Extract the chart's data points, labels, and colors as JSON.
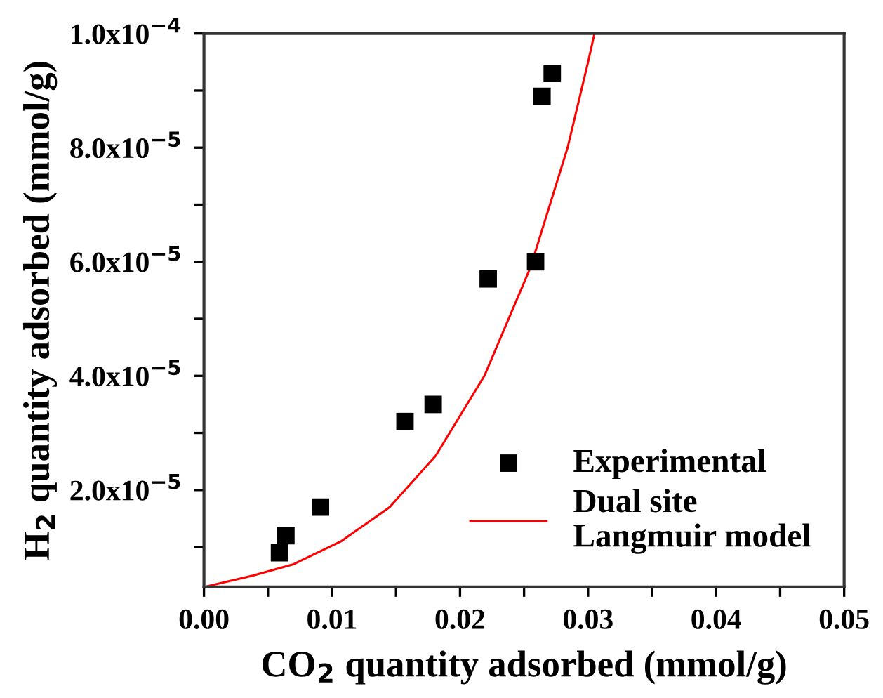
{
  "chart_data": {
    "type": "scatter",
    "xlabel": "CO$_{2}$ quantity adsorbed (mmol/g)",
    "ylabel": "H$_{2}$ quantity adsorbed (mmol/g)",
    "xlim": [
      0,
      0.05
    ],
    "ylim": [
      3e-06,
      0.0001
    ],
    "xticks": [
      {
        "value": 0,
        "label": "0.00"
      },
      {
        "value": 0.005,
        "label": null
      },
      {
        "value": 0.01,
        "label": "0.01"
      },
      {
        "value": 0.015,
        "label": null
      },
      {
        "value": 0.02,
        "label": "0.02"
      },
      {
        "value": 0.025,
        "label": null
      },
      {
        "value": 0.03,
        "label": "0.03"
      },
      {
        "value": 0.035,
        "label": null
      },
      {
        "value": 0.04,
        "label": "0.04"
      },
      {
        "value": 0.045,
        "label": null
      },
      {
        "value": 0.05,
        "label": "0.05"
      }
    ],
    "yticks": [
      {
        "value": 1e-05,
        "label": null
      },
      {
        "value": 2e-05,
        "label": "2.0x10$^{−5}$"
      },
      {
        "value": 3e-05,
        "label": null
      },
      {
        "value": 4e-05,
        "label": "4.0x10$^{−5}$"
      },
      {
        "value": 5e-05,
        "label": null
      },
      {
        "value": 6e-05,
        "label": "6.0x10$^{−5}$"
      },
      {
        "value": 7e-05,
        "label": null
      },
      {
        "value": 8e-05,
        "label": "8.0x10$^{−5}$"
      },
      {
        "value": 9e-05,
        "label": null
      },
      {
        "value": 0.0001,
        "label": "1.0x10$^{−4}$"
      }
    ],
    "legend": "bottom right",
    "grid": false,
    "series": [
      {
        "name": "Experimental",
        "marker": "square",
        "color": "#000000",
        "x": [
          0.0059,
          0.0064,
          0.0091,
          0.0157,
          0.0179,
          0.0222,
          0.0259,
          0.0264,
          0.0272
        ],
        "values": [
          9e-06,
          1.2e-05,
          1.7e-05,
          3.2e-05,
          3.5e-05,
          5.7e-05,
          6e-05,
          8.9e-05,
          9.3e-05
        ]
      },
      {
        "name": "Dual site\nLangmuir model",
        "type": "line",
        "marker": "none",
        "line_style": "solid",
        "color": "#ff0000",
        "x": [
          0,
          0.0038,
          0.007,
          0.0107,
          0.0145,
          0.0181,
          0.0219,
          0.0255,
          0.0284,
          0.03,
          0.0305
        ],
        "values": [
          3e-06,
          5e-06,
          7e-06,
          1.1e-05,
          1.7e-05,
          2.6e-05,
          4e-05,
          5.9e-05,
          8e-05,
          9.5e-05,
          0.0001
        ]
      }
    ]
  }
}
